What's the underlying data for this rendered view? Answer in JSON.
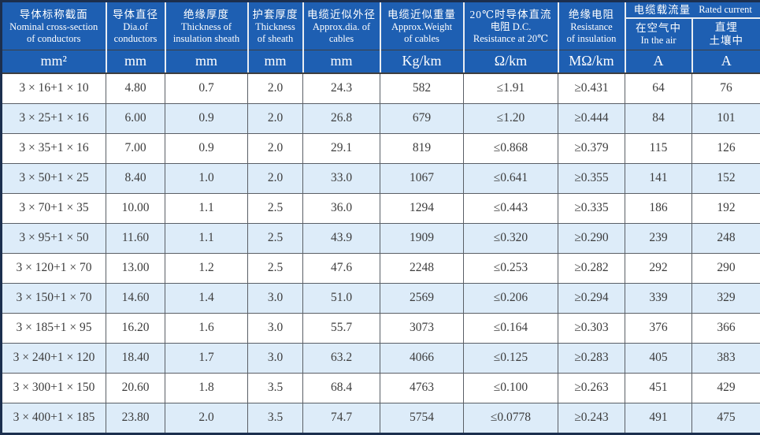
{
  "table": {
    "header": {
      "columns": [
        {
          "zh": "导体标称截面",
          "en1": "Nominal cross-section",
          "en2": "of conductors",
          "unit": "mm²"
        },
        {
          "zh": "导体直径",
          "en1": "Dia.of",
          "en2": "conductors",
          "unit": "mm"
        },
        {
          "zh": "绝缘厚度",
          "en1": "Thickness of",
          "en2": "insulation sheath",
          "unit": "mm"
        },
        {
          "zh": "护套厚度",
          "en1": "Thickness",
          "en2": "of sheath",
          "unit": "mm"
        },
        {
          "zh": "电缆近似外径",
          "en1": "Approx.dia. of",
          "en2": "cables",
          "unit": "mm"
        },
        {
          "zh": "电缆近似重量",
          "en1": "Approx.Weight",
          "en2": "of cables",
          "unit": "Kg/km"
        },
        {
          "zh": "20℃时导体直流",
          "en1": "电阻 D.C.",
          "en2": "Resistance at 20℃",
          "unit": "Ω/km"
        },
        {
          "zh": "绝缘电阻",
          "en1": "Resistance",
          "en2": "of insulation",
          "unit": "MΩ/km"
        }
      ],
      "rated_current_group": {
        "zh": "电缆载流量",
        "en": "Rated current",
        "sub": [
          {
            "zh": "在空气中",
            "en": "In the air",
            "unit": "A"
          },
          {
            "zh": "直埋",
            "en": "土壤中",
            "unit": "A"
          }
        ]
      }
    },
    "rows": [
      [
        "3 × 16+1 × 10",
        "4.80",
        "0.7",
        "2.0",
        "24.3",
        "582",
        "≤1.91",
        "≥0.431",
        "64",
        "76"
      ],
      [
        "3 × 25+1 × 16",
        "6.00",
        "0.9",
        "2.0",
        "26.8",
        "679",
        "≤1.20",
        "≥0.444",
        "84",
        "101"
      ],
      [
        "3 × 35+1 × 16",
        "7.00",
        "0.9",
        "2.0",
        "29.1",
        "819",
        "≤0.868",
        "≥0.379",
        "115",
        "126"
      ],
      [
        "3 × 50+1 × 25",
        "8.40",
        "1.0",
        "2.0",
        "33.0",
        "1067",
        "≤0.641",
        "≥0.355",
        "141",
        "152"
      ],
      [
        "3 × 70+1 × 35",
        "10.00",
        "1.1",
        "2.5",
        "36.0",
        "1294",
        "≤0.443",
        "≥0.335",
        "186",
        "192"
      ],
      [
        "3 × 95+1 × 50",
        "11.60",
        "1.1",
        "2.5",
        "43.9",
        "1909",
        "≤0.320",
        "≥0.290",
        "239",
        "248"
      ],
      [
        "3 × 120+1 × 70",
        "13.00",
        "1.2",
        "2.5",
        "47.6",
        "2248",
        "≤0.253",
        "≥0.282",
        "292",
        "290"
      ],
      [
        "3 × 150+1 × 70",
        "14.60",
        "1.4",
        "3.0",
        "51.0",
        "2569",
        "≤0.206",
        "≥0.294",
        "339",
        "329"
      ],
      [
        "3 × 185+1 × 95",
        "16.20",
        "1.6",
        "3.0",
        "55.7",
        "3073",
        "≤0.164",
        "≥0.303",
        "376",
        "366"
      ],
      [
        "3 × 240+1 × 120",
        "18.40",
        "1.7",
        "3.0",
        "63.2",
        "4066",
        "≤0.125",
        "≥0.283",
        "405",
        "383"
      ],
      [
        "3 × 300+1 × 150",
        "20.60",
        "1.8",
        "3.5",
        "68.4",
        "4763",
        "≤0.100",
        "≥0.263",
        "451",
        "429"
      ],
      [
        "3 × 400+1 × 185",
        "23.80",
        "2.0",
        "3.5",
        "74.7",
        "5754",
        "≤0.0778",
        "≥0.243",
        "491",
        "475"
      ]
    ]
  },
  "colors": {
    "header_bg": "#1e5fb2",
    "header_text": "#ffffff",
    "row_bg": "#ffffff",
    "row_alt_bg": "#ddecf9",
    "body_text": "#3d3d3d",
    "grid_line": "#5a5f66",
    "header_divider": "#e9edf2",
    "dark_rule": "#3f3f3f",
    "outer_border": "#1c2f4e"
  }
}
